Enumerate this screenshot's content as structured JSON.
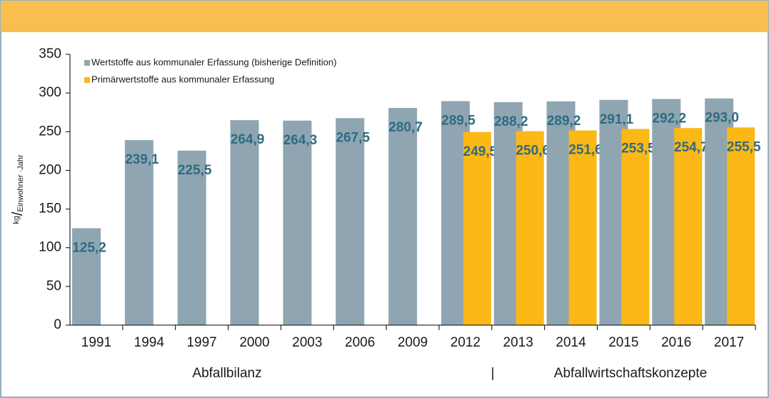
{
  "chart_data": {
    "type": "bar",
    "categories": [
      "1991",
      "1994",
      "1997",
      "2000",
      "2003",
      "2006",
      "2009",
      "2012",
      "2013",
      "2014",
      "2015",
      "2016",
      "2017"
    ],
    "series": [
      {
        "name": "Wertstoffe aus kommunaler Erfassung (bisherige Definition)",
        "color": "#8fa6b2",
        "values": [
          125.2,
          239.1,
          225.5,
          264.9,
          264.3,
          267.5,
          280.7,
          289.5,
          288.2,
          289.2,
          291.1,
          292.2,
          293.0
        ],
        "value_labels": [
          "125,2",
          "239,1",
          "225,5",
          "264,9",
          "264,3",
          "267,5",
          "280,7",
          "289,5",
          "288,2",
          "289,2",
          "291,1",
          "292,2",
          "293,0"
        ]
      },
      {
        "name": "Primärwertstoffe aus kommunaler Erfassung",
        "color": "#fbb817",
        "values": [
          null,
          null,
          null,
          null,
          null,
          null,
          null,
          249.5,
          250.6,
          251.6,
          253.5,
          254.7,
          255.5
        ],
        "value_labels": [
          null,
          null,
          null,
          null,
          null,
          null,
          null,
          "249,5",
          "250,6",
          "251,6",
          "253,5",
          "254,7",
          "255,5"
        ]
      }
    ],
    "y_label_parts": [
      "kg",
      "/",
      "Einwohner ·Jahr"
    ],
    "ylim": [
      0,
      350
    ],
    "yticks": [
      0,
      50,
      100,
      150,
      200,
      250,
      300,
      350
    ],
    "groups": [
      "Abfallbilanz",
      "Abfallwirtschaftskonzepte"
    ],
    "group_separator": "|",
    "legend": "top-left"
  }
}
